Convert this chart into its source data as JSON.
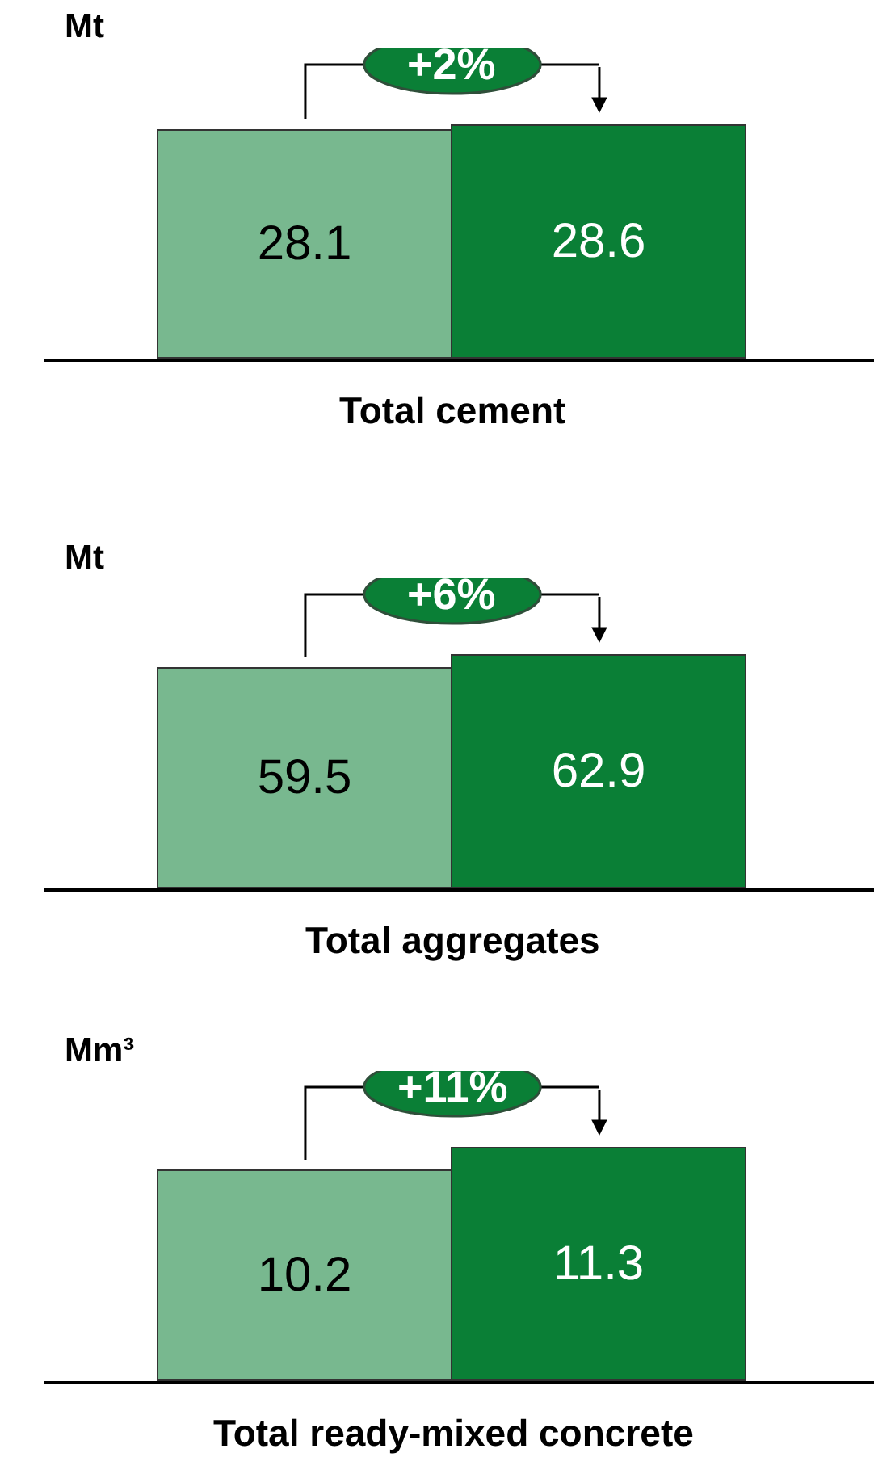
{
  "chart_data": [
    {
      "type": "bar",
      "categories": [
        null,
        null
      ],
      "values": [
        28.1,
        28.6
      ],
      "colors": [
        "#78b88f",
        "#0a7f36"
      ],
      "data_labels": true,
      "ylabel": "Mt",
      "xlabel": "Total cement",
      "annotations": [
        "+2%"
      ]
    },
    {
      "type": "bar",
      "categories": [
        null,
        null
      ],
      "values": [
        59.5,
        62.9
      ],
      "colors": [
        "#78b88f",
        "#0a7f36"
      ],
      "data_labels": true,
      "ylabel": "Mt",
      "xlabel": "Total aggregates",
      "annotations": [
        "+6%"
      ]
    },
    {
      "type": "bar",
      "categories": [
        null,
        null
      ],
      "values": [
        10.2,
        11.3
      ],
      "colors": [
        "#78b88f",
        "#0a7f36"
      ],
      "data_labels": true,
      "ylabel": "Mm³",
      "xlabel": "Total ready-mixed concrete",
      "annotations": [
        "+11%"
      ]
    }
  ]
}
